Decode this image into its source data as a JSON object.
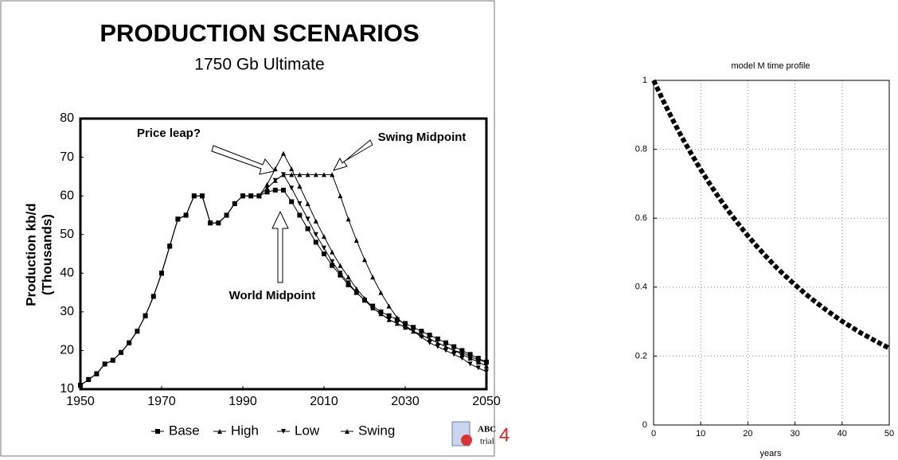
{
  "chart_data": [
    {
      "type": "line",
      "title": "PRODUCTION SCENARIOS",
      "subtitle": "1750 Gb Ultimate",
      "ylabel": [
        "Production kb/d",
        "(Thousands)"
      ],
      "x": [
        1950,
        1952,
        1954,
        1956,
        1958,
        1960,
        1962,
        1964,
        1966,
        1968,
        1970,
        1972,
        1974,
        1976,
        1978,
        1980,
        1982,
        1984,
        1986,
        1988,
        1990,
        1992,
        1994,
        1996,
        1998,
        2000,
        2002,
        2004,
        2006,
        2008,
        2010,
        2012,
        2014,
        2016,
        2018,
        2020,
        2022,
        2024,
        2026,
        2028,
        2030,
        2032,
        2034,
        2036,
        2038,
        2040,
        2042,
        2044,
        2046,
        2048,
        2050
      ],
      "series": [
        {
          "name": "Base",
          "color": "#000000",
          "marker": "square",
          "values": [
            11,
            12.5,
            14,
            16.5,
            17.5,
            19.5,
            22,
            25,
            29,
            34,
            40,
            47,
            54,
            55,
            60,
            60,
            53,
            53,
            55,
            58,
            60,
            60,
            60,
            61,
            61.5,
            61.5,
            58.5,
            55,
            51.5,
            48,
            45,
            42,
            39.5,
            37,
            35,
            33,
            31.5,
            30,
            29,
            28,
            27,
            26,
            25,
            24,
            23,
            22,
            21,
            20,
            19,
            18,
            17
          ]
        },
        {
          "name": "High",
          "color": "#000000",
          "marker": "triangle",
          "values": [
            11,
            12.5,
            14,
            16.5,
            17.5,
            19.5,
            22,
            25,
            29,
            34,
            40,
            47,
            54,
            55,
            60,
            60,
            53,
            53,
            55,
            58,
            60,
            60,
            60,
            63,
            67,
            71,
            67,
            62.5,
            58,
            53.5,
            49.5,
            45.5,
            42,
            39,
            36,
            33.5,
            31,
            29.5,
            28,
            27,
            26,
            25,
            24,
            23,
            22,
            21,
            20,
            19,
            18,
            17,
            16
          ]
        },
        {
          "name": "Low",
          "color": "#000000",
          "marker": "triangle-down",
          "values": [
            11,
            12.5,
            14,
            16.5,
            17.5,
            19.5,
            22,
            25,
            29,
            34,
            40,
            47,
            54,
            55,
            60,
            60,
            53,
            53,
            55,
            58,
            60,
            60,
            60,
            62,
            64,
            65.5,
            62,
            58,
            54,
            50,
            46.5,
            43,
            40,
            37.5,
            35,
            33,
            31,
            29.5,
            28,
            27,
            26,
            25,
            23.5,
            22,
            21,
            20,
            19,
            18,
            16.5,
            15.5,
            14.5
          ]
        },
        {
          "name": "Swing",
          "color": "#000000",
          "marker": "triangle",
          "values": [
            11,
            12.5,
            14,
            16.5,
            17.5,
            19.5,
            22,
            25,
            29,
            34,
            40,
            47,
            54,
            55,
            60,
            60,
            53,
            53,
            55,
            58,
            60,
            60,
            60,
            62,
            64,
            65.5,
            65.5,
            65.5,
            65.5,
            65.5,
            65.5,
            65.5,
            60,
            54,
            48.5,
            43.5,
            39,
            35,
            31.5,
            28.5,
            26.5,
            25,
            24,
            23,
            22,
            21,
            20,
            19.5,
            18.5,
            17.5,
            17
          ]
        }
      ],
      "xlim": [
        1950,
        2050
      ],
      "xticks": [
        1950,
        1970,
        1990,
        2010,
        2030,
        2050
      ],
      "ylim": [
        10,
        80
      ],
      "yticks": [
        10,
        20,
        30,
        40,
        50,
        60,
        70,
        80
      ],
      "annotations": [
        "Price leap?",
        "Swing Midpoint",
        "World Midpoint"
      ],
      "watermark": [
        "ABC",
        "trial",
        "4"
      ]
    },
    {
      "type": "line",
      "title": "model M time profile",
      "xlabel": "years",
      "line_style": "dashed",
      "x": [
        0,
        2,
        4,
        6,
        8,
        10,
        12,
        14,
        16,
        18,
        20,
        22,
        24,
        26,
        28,
        30,
        32,
        34,
        36,
        38,
        40,
        42,
        44,
        46,
        48,
        50
      ],
      "series": [
        {
          "name": "M",
          "color": "#000000",
          "values": [
            1,
            0.942,
            0.887,
            0.835,
            0.787,
            0.741,
            0.698,
            0.657,
            0.619,
            0.583,
            0.549,
            0.517,
            0.487,
            0.458,
            0.432,
            0.407,
            0.383,
            0.361,
            0.34,
            0.32,
            0.301,
            0.284,
            0.267,
            0.252,
            0.237,
            0.223
          ]
        }
      ],
      "xlim": [
        0,
        50
      ],
      "xticks": [
        0,
        10,
        20,
        30,
        40,
        50
      ],
      "ylim": [
        0,
        1
      ],
      "yticks": [
        0,
        0.2,
        0.4,
        0.6,
        0.8,
        1
      ],
      "grid": true
    }
  ]
}
